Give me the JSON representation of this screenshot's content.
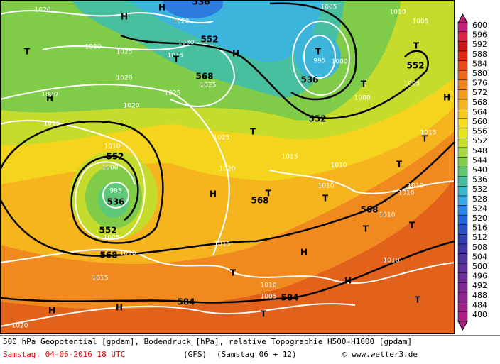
{
  "map": {
    "labels": [
      "1020",
      "H",
      "H",
      "536",
      "1005",
      "1010",
      "1005",
      "T",
      "552",
      "1030",
      "1025",
      "T",
      "1030",
      "1020",
      "552",
      "H",
      "1015",
      "T",
      "T",
      "995",
      "1000",
      "536",
      "1020",
      "568",
      "1025",
      "1025",
      "H",
      "1020",
      "1020",
      "1015",
      "552",
      "T",
      "1025",
      "1010",
      "552",
      "1000",
      "1015",
      "1020",
      "1010",
      "T",
      "995",
      "536",
      "H",
      "T",
      "568",
      "1010",
      "T",
      "1010",
      "1010",
      "552",
      "1005",
      "1015",
      "568",
      "1010",
      "T",
      "T",
      "568",
      "1010",
      "H",
      "1015",
      "T",
      "1010",
      "H",
      "1010",
      "1005",
      "584",
      "584",
      "T",
      "H",
      "H",
      "T",
      "1020",
      "T",
      "1015",
      "H",
      "T",
      "1000",
      "1005"
    ]
  },
  "colorbar": {
    "labels": [
      600,
      596,
      592,
      588,
      584,
      580,
      576,
      572,
      568,
      564,
      560,
      556,
      552,
      548,
      544,
      540,
      536,
      532,
      528,
      524,
      520,
      516,
      512,
      508,
      504,
      500,
      496,
      492,
      488,
      484,
      480
    ],
    "colors": [
      "#c0207a",
      "#d8284a",
      "#c81818",
      "#e02a10",
      "#e84a14",
      "#ec6a1a",
      "#f08420",
      "#f49c20",
      "#f6b41e",
      "#f8c81c",
      "#f6dc1a",
      "#e8e41c",
      "#c8e02c",
      "#a4d83c",
      "#80d04c",
      "#5cc870",
      "#44c0a0",
      "#3cb8cc",
      "#3ca8e8",
      "#2c88e8",
      "#2468d8",
      "#2850c0",
      "#3040b0",
      "#4038a8",
      "#5034a0",
      "#60309c",
      "#702c98",
      "#802894",
      "#902490",
      "#a0208c",
      "#b01c88"
    ]
  },
  "footer": {
    "line1": "500 hPa Geopotential [gpdam], Bodendruck [hPa], relative Topographie H500-H1000 [gpdam]",
    "date": "Samstag, 04-06-2016  18 UTC",
    "model": "(GFS)",
    "run": "(Samstag 06 + 12)",
    "credit": "© www.wetter3.de"
  }
}
